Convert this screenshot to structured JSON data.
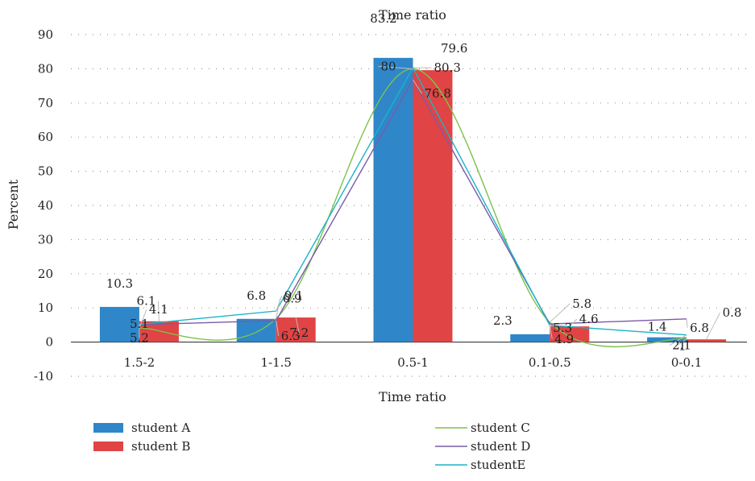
{
  "chart_data": {
    "type": "bar",
    "title": "Time ratio",
    "xlabel": "Time ratio",
    "ylabel": "Percent",
    "ylim": [
      -10,
      90
    ],
    "yticks": [
      -10,
      0,
      10,
      20,
      30,
      40,
      50,
      60,
      70,
      80,
      90
    ],
    "grid": "dotted horizontal",
    "legend_position": "bottom",
    "categories": [
      "1.5-2",
      "1-1.5",
      "0.5-1",
      "0.1-0.5",
      "0-0.1"
    ],
    "series": [
      {
        "name": "student A",
        "kind": "bar",
        "color": "#2f86c8",
        "values": [
          10.3,
          6.8,
          83.2,
          2.3,
          1.4
        ]
      },
      {
        "name": "student B",
        "kind": "bar",
        "color": "#e04444",
        "values": [
          6.1,
          7.2,
          79.6,
          4.6,
          0.8
        ]
      },
      {
        "name": "student C",
        "kind": "smooth-line",
        "color": "#7cc24c",
        "values": [
          4.1,
          6.9,
          80,
          5.8,
          1
        ]
      },
      {
        "name": "student D",
        "kind": "line",
        "color": "#7b5ba6",
        "values": [
          5.1,
          6.3,
          76.8,
          5.3,
          6.8
        ]
      },
      {
        "name": "studentE",
        "kind": "line",
        "color": "#1bb3c9",
        "values": [
          5.2,
          9.1,
          80.3,
          4.9,
          2.1
        ]
      }
    ]
  }
}
